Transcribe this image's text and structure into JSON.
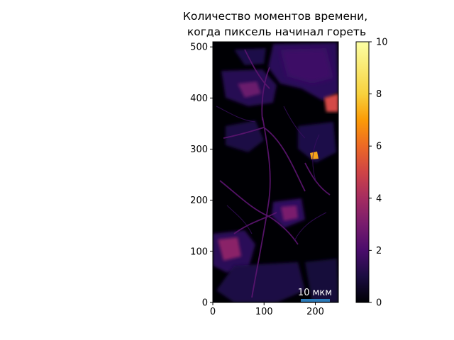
{
  "chart_data": {
    "type": "heatmap",
    "title_lines": [
      "Количество моментов времени,",
      "когда пиксель начинал гореть"
    ],
    "x_ticks": [
      0,
      100,
      200
    ],
    "y_ticks": [
      0,
      100,
      200,
      300,
      400,
      500
    ],
    "xlim": [
      0,
      245
    ],
    "ylim": [
      0,
      510
    ],
    "colorbar": {
      "colormap": "inferno",
      "range": [
        0,
        10
      ],
      "ticks": [
        0,
        2,
        4,
        6,
        8,
        10
      ]
    },
    "scale_bar": {
      "label": "10 мкм",
      "color": "#2a7ab8",
      "x_start": 172,
      "x_end": 228,
      "y": 5
    },
    "image_description_values": {
      "background": 0,
      "typical_cell_body": 1.8,
      "process_lines": 2.2,
      "hotspots": [
        {
          "x": 230,
          "y": 385,
          "value": 4.5
        },
        {
          "x": 195,
          "y": 283,
          "value": 7.5
        },
        {
          "x": 25,
          "y": 105,
          "value": 3.5
        },
        {
          "x": 150,
          "y": 170,
          "value": 3.0
        }
      ]
    },
    "grid": false
  }
}
